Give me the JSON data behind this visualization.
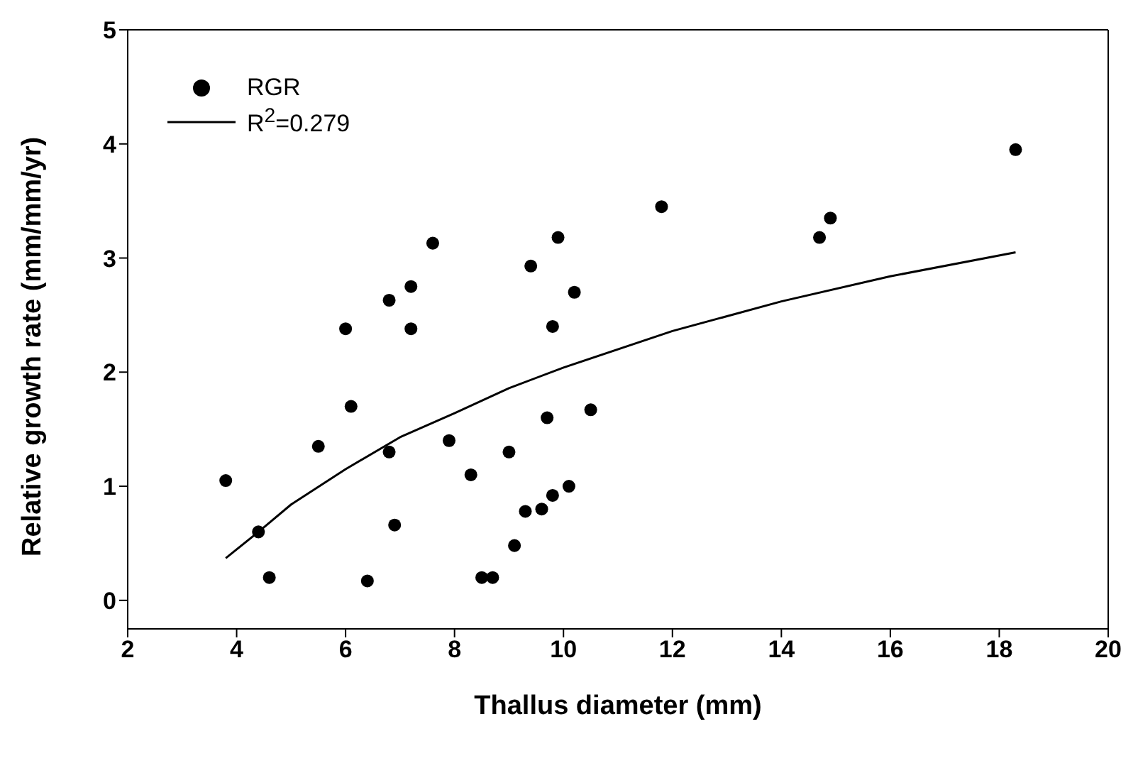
{
  "chart_data": {
    "type": "scatter",
    "xlabel": "Thallus diameter (mm)",
    "ylabel": "Relative growth rate (mm/mm/yr)",
    "xlim": [
      2,
      20
    ],
    "xticks": [
      2,
      4,
      6,
      8,
      10,
      12,
      14,
      16,
      18,
      20
    ],
    "ylim": [
      -0.25,
      5
    ],
    "yticks": [
      0,
      1,
      2,
      3,
      4,
      5
    ],
    "legend": "top left",
    "marker": "circle",
    "grid": false,
    "series": [
      {
        "name": "RGR",
        "color": "#000000",
        "x": [
          3.8,
          4.4,
          4.6,
          5.5,
          6.0,
          6.1,
          6.4,
          6.8,
          6.8,
          6.9,
          7.2,
          7.2,
          7.6,
          7.9,
          8.3,
          8.5,
          8.7,
          9.0,
          9.1,
          9.3,
          9.4,
          9.6,
          9.7,
          9.8,
          9.8,
          9.9,
          10.1,
          10.2,
          10.5,
          11.8,
          14.7,
          14.9,
          18.3
        ],
        "values": [
          1.05,
          0.6,
          0.2,
          1.35,
          2.38,
          1.7,
          0.17,
          2.63,
          1.3,
          0.66,
          2.75,
          2.38,
          3.13,
          1.4,
          1.1,
          0.2,
          0.2,
          1.3,
          0.48,
          0.78,
          2.93,
          0.8,
          1.6,
          0.92,
          2.4,
          3.18,
          1.0,
          2.7,
          1.67,
          3.45,
          3.18,
          3.35,
          3.95
        ]
      },
      {
        "name": "R$^{2}$=0.279",
        "type": "line",
        "color": "#000000",
        "marker": "none",
        "line_style": "solid",
        "x": [
          3.8,
          4.4,
          5,
          6,
          7,
          8,
          9,
          10,
          12,
          14,
          16,
          18.3
        ],
        "values": [
          0.37,
          0.6,
          0.84,
          1.15,
          1.43,
          1.64,
          1.86,
          2.04,
          2.36,
          2.62,
          2.84,
          3.05
        ]
      }
    ]
  }
}
